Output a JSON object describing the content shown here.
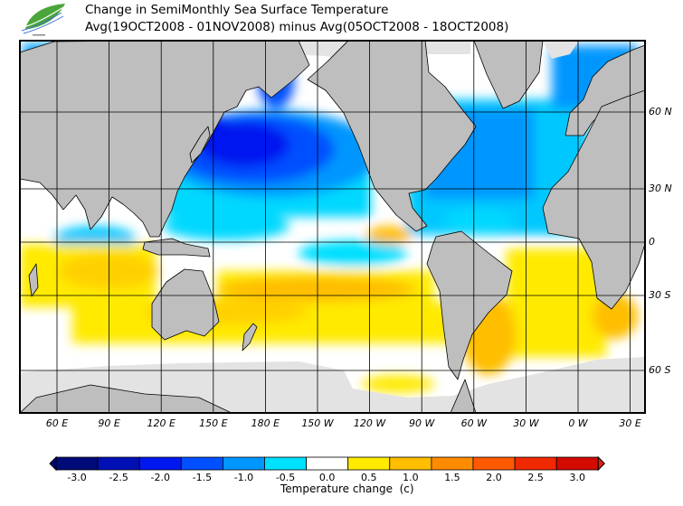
{
  "header": {
    "title_line1": "Change in SemiMonthly Sea Surface Temperature",
    "title_line2": "Avg(19OCT2008 - 01NOV2008) minus Avg(05OCT2008 - 18OCT2008)"
  },
  "map": {
    "lat_labels": [
      "60 N",
      "30 N",
      "0",
      "30 S",
      "60 S"
    ],
    "lon_labels": [
      "60 E",
      "90 E",
      "120 E",
      "150 E",
      "180 E",
      "150 W",
      "120 W",
      "90 W",
      "60 W",
      "30 W",
      "0 W",
      "30 E"
    ],
    "land_color": "#bebebe",
    "no_data_color": "#e3e3e3"
  },
  "legend": {
    "title": "Temperature change  (c)",
    "ticks": [
      "-3.0",
      "-2.5",
      "-2.0",
      "-1.5",
      "-1.0",
      "-0.5",
      "0.0",
      "0.5",
      "1.0",
      "1.5",
      "2.0",
      "2.5",
      "3.0"
    ],
    "colors": [
      "#000a78",
      "#0010b4",
      "#0018f0",
      "#0050ff",
      "#0096ff",
      "#00e0ff",
      "#ffffff",
      "#ffea00",
      "#ffbe00",
      "#ff8c00",
      "#ff5a00",
      "#f02800",
      "#d20a00",
      "#c80000"
    ],
    "low_arrow_color": "#000a78",
    "high_arrow_color": "#e02010"
  }
}
